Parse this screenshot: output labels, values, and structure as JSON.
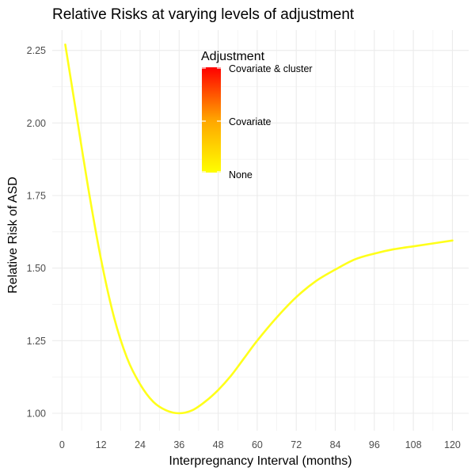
{
  "chart_data": {
    "type": "line",
    "title": "Relative Risks at varying levels of adjustment",
    "xlabel": "Interpregnancy Interval (months)",
    "ylabel": "Relative Risk of ASD",
    "xlim": [
      -3,
      125
    ],
    "ylim": [
      0.94,
      2.32
    ],
    "x_ticks": [
      0,
      12,
      24,
      36,
      48,
      60,
      72,
      84,
      96,
      108,
      120
    ],
    "x_tick_labels": [
      "0",
      "12",
      "24",
      "36",
      "48",
      "60",
      "72",
      "84",
      "96",
      "108",
      "120"
    ],
    "y_ticks": [
      1.0,
      1.25,
      1.5,
      1.75,
      2.0,
      2.25
    ],
    "y_tick_labels": [
      "1.00",
      "1.25",
      "1.50",
      "1.75",
      "2.00",
      "2.25"
    ],
    "grid": true,
    "series": [
      {
        "color": "#ffff1a",
        "x": [
          1,
          4,
          8,
          12,
          16,
          20,
          24,
          28,
          32,
          36,
          40,
          44,
          48,
          52,
          56,
          60,
          66,
          72,
          78,
          84,
          90,
          96,
          102,
          108,
          114,
          120
        ],
        "y": [
          2.27,
          2.06,
          1.78,
          1.53,
          1.33,
          1.19,
          1.1,
          1.04,
          1.01,
          1.0,
          1.01,
          1.04,
          1.08,
          1.13,
          1.19,
          1.25,
          1.33,
          1.4,
          1.455,
          1.495,
          1.53,
          1.55,
          1.565,
          1.575,
          1.585,
          1.595
        ]
      }
    ],
    "legend": {
      "title": "Adjustment",
      "position": "top-center",
      "type": "colorbar",
      "labels": [
        "Covariate & cluster",
        "Covariate",
        "None"
      ],
      "colors": [
        "#ff0000",
        "#ffa500",
        "#ffff00"
      ]
    }
  }
}
